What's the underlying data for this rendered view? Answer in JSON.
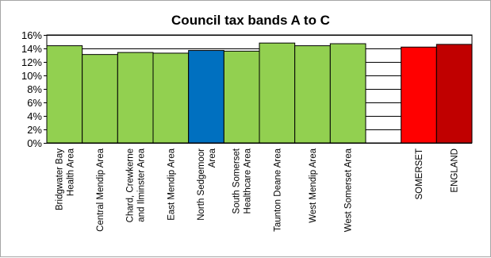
{
  "chart_data": {
    "type": "bar",
    "title": "Council tax bands A to C",
    "xlabel": "",
    "ylabel": "",
    "ylim": [
      0,
      16
    ],
    "y_ticks": [
      "0%",
      "2%",
      "4%",
      "6%",
      "8%",
      "10%",
      "12%",
      "14%",
      "16%"
    ],
    "grid": "horizontal",
    "legend": "none",
    "categories": [
      [
        "Bridgwater Bay",
        "Health Area"
      ],
      [
        "Central Mendip Area"
      ],
      [
        "Chard, Crewkerne",
        "and Ilminster Area"
      ],
      [
        "East Mendip Area"
      ],
      [
        "North Sedgemoor",
        "Area"
      ],
      [
        "South Somerset",
        "Healthcare Area"
      ],
      [
        "Taunton Deane Area"
      ],
      [
        "West Mendip Area"
      ],
      [
        "West Somerset Area"
      ],
      [
        ""
      ],
      [
        "SOMERSET"
      ],
      [
        "ENGLAND"
      ]
    ],
    "values": [
      14.4,
      13.1,
      13.4,
      13.3,
      13.7,
      13.6,
      14.8,
      14.4,
      14.7,
      null,
      14.2,
      14.6
    ],
    "colors": [
      "#92d050",
      "#92d050",
      "#92d050",
      "#92d050",
      "#0070c0",
      "#92d050",
      "#92d050",
      "#92d050",
      "#92d050",
      "",
      "#ff0000",
      "#c00000"
    ]
  }
}
